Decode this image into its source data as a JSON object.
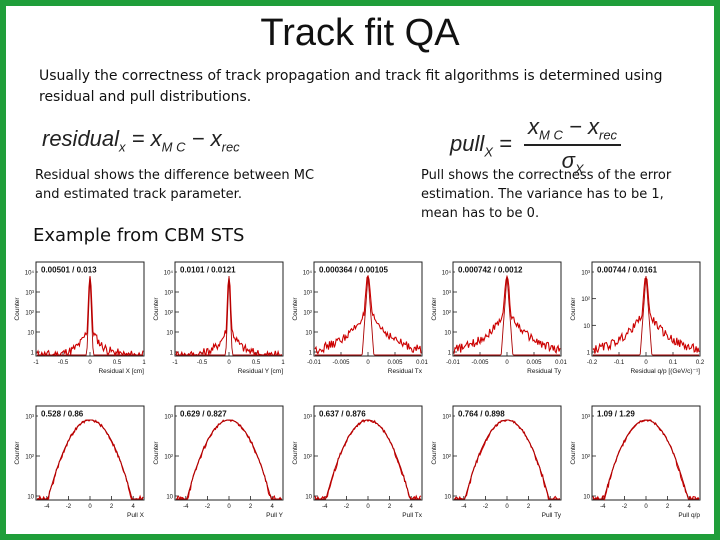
{
  "slide": {
    "title": "Track fit QA",
    "intro": "Usually the correctness of track propagation and track fit algorithms is determined using residual and pull distributions.",
    "residual_formula": {
      "lhs": "residual",
      "sub_lhs": "x",
      "eq": "=",
      "a": "x",
      "sub_a": "M C",
      "minus": "−",
      "b": "x",
      "sub_b": "rec"
    },
    "pull_formula": {
      "lhs": "pull",
      "sub_lhs": "X",
      "eq": "=",
      "a": "x",
      "sub_a": "M C",
      "minus": "−",
      "b": "x",
      "sub_b": "rec",
      "den": "σ",
      "sub_den": "X"
    },
    "residual_text": "Residual shows the difference between MC and estimated track parameter.",
    "pull_text": "Pull shows the correctness of the error estimation. The variance has to be 1, mean has to be 0.",
    "example_label": "Example from CBM STS",
    "colors": {
      "border": "#1f9e3a",
      "curve": "#cc0000",
      "fit": "#aa0000"
    }
  },
  "chart_data": [
    {
      "type": "histogram",
      "ylabel": "Counter",
      "stats": "0.00501 / 0.013",
      "xlabel": "Residual X [cm]",
      "xticks": [
        "-1",
        "-0.5",
        "0",
        "0.5",
        "1"
      ],
      "xlim": [
        -1,
        1
      ],
      "yscale": "log",
      "yticks": [
        "1",
        "10",
        "10²",
        "10³",
        "10⁴"
      ],
      "shape": "narrow-peak"
    },
    {
      "type": "histogram",
      "ylabel": "Counter",
      "stats": "0.0101 / 0.0121",
      "xlabel": "Residual Y [cm]",
      "xticks": [
        "-1",
        "-0.5",
        "0",
        "0.5",
        "1"
      ],
      "xlim": [
        -1,
        1
      ],
      "yscale": "log",
      "yticks": [
        "1",
        "10",
        "10²",
        "10³",
        "10⁴"
      ],
      "shape": "narrow-peak"
    },
    {
      "type": "histogram",
      "ylabel": "Counter",
      "stats": "0.000364 / 0.00105",
      "xlabel": "Residual Tx",
      "xticks": [
        "-0.01",
        "-0.005",
        "0",
        "0.005",
        "0.01"
      ],
      "xlim": [
        -0.01,
        0.01
      ],
      "yscale": "log",
      "yticks": [
        "1",
        "10",
        "10²",
        "10³",
        "10⁴"
      ],
      "shape": "peak-tails"
    },
    {
      "type": "histogram",
      "ylabel": "Counter",
      "stats": "0.000742 / 0.0012",
      "xlabel": "Residual Ty",
      "xticks": [
        "-0.01",
        "-0.005",
        "0",
        "0.005",
        "0.01"
      ],
      "xlim": [
        -0.01,
        0.01
      ],
      "yscale": "log",
      "yticks": [
        "1",
        "10",
        "10²",
        "10³",
        "10⁴"
      ],
      "shape": "peak-tails"
    },
    {
      "type": "histogram",
      "ylabel": "Counter",
      "stats": "0.00744 / 0.0161",
      "xlabel": "Residual q/p [(GeV/c)⁻¹]",
      "xticks": [
        "-0.2",
        "-0.1",
        "0",
        "0.1",
        "0.2"
      ],
      "xlim": [
        -0.2,
        0.2
      ],
      "yscale": "log",
      "yticks": [
        "1",
        "10",
        "10²",
        "10³"
      ],
      "shape": "peak-tails"
    },
    {
      "type": "histogram",
      "ylabel": "Counter",
      "stats": "0.528 / 0.86",
      "xlabel": "Pull X",
      "xticks": [
        "-4",
        "-2",
        "0",
        "2",
        "4"
      ],
      "xlim": [
        -5,
        5
      ],
      "yscale": "log",
      "yticks": [
        "10",
        "10²",
        "10³"
      ],
      "shape": "gaussian"
    },
    {
      "type": "histogram",
      "ylabel": "Counter",
      "stats": "0.629 / 0.827",
      "xlabel": "Pull Y",
      "xticks": [
        "-4",
        "-2",
        "0",
        "2",
        "4"
      ],
      "xlim": [
        -5,
        5
      ],
      "yscale": "log",
      "yticks": [
        "10",
        "10²",
        "10³"
      ],
      "shape": "gaussian"
    },
    {
      "type": "histogram",
      "ylabel": "Counter",
      "stats": "0.637 / 0.876",
      "xlabel": "Pull Tx",
      "xticks": [
        "-4",
        "-2",
        "0",
        "2",
        "4"
      ],
      "xlim": [
        -5,
        5
      ],
      "yscale": "log",
      "yticks": [
        "10",
        "10²",
        "10³"
      ],
      "shape": "gaussian"
    },
    {
      "type": "histogram",
      "ylabel": "Counter",
      "stats": "0.764 / 0.898",
      "xlabel": "Pull Ty",
      "xticks": [
        "-4",
        "-2",
        "0",
        "2",
        "4"
      ],
      "xlim": [
        -5,
        5
      ],
      "yscale": "log",
      "yticks": [
        "10",
        "10²",
        "10³"
      ],
      "shape": "gaussian"
    },
    {
      "type": "histogram",
      "ylabel": "Counter",
      "stats": "1.09 / 1.29",
      "xlabel": "Pull q/p",
      "xticks": [
        "-4",
        "-2",
        "0",
        "2",
        "4"
      ],
      "xlim": [
        -5,
        5
      ],
      "yscale": "log",
      "yticks": [
        "10",
        "10²",
        "10³"
      ],
      "shape": "gaussian"
    }
  ]
}
